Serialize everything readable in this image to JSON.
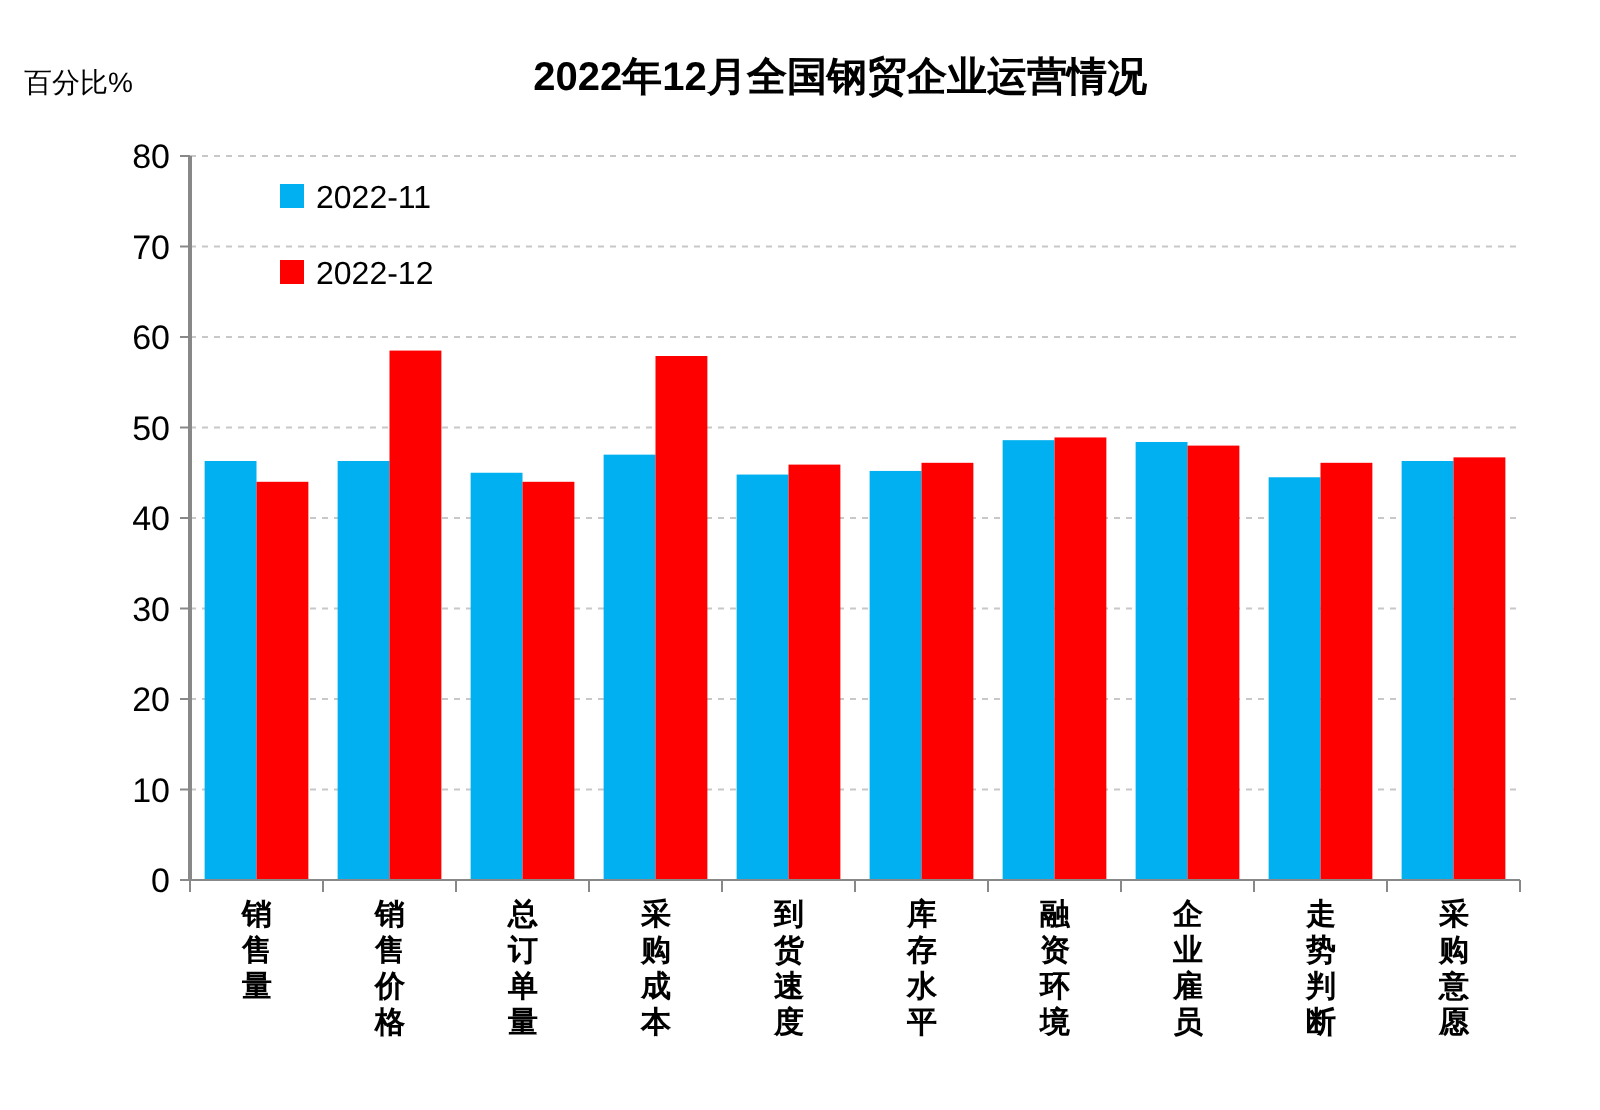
{
  "chart_data": {
    "type": "bar",
    "title": "2022年12月全国钢贸企业运营情况",
    "ylabel": "百分比%",
    "categories": [
      "销售量",
      "销售价格",
      "总订单量",
      "采购成本",
      "到货速度",
      "库存水平",
      "融资环境",
      "企业雇员",
      "走势判断",
      "采购意愿"
    ],
    "series": [
      {
        "name": "2022-11",
        "color": "#00b0f0",
        "values": [
          46.3,
          46.3,
          45.0,
          47.0,
          44.8,
          45.2,
          48.6,
          48.4,
          44.5,
          46.3
        ]
      },
      {
        "name": "2022-12",
        "color": "#ff0000",
        "values": [
          44.0,
          58.5,
          44.0,
          57.9,
          45.9,
          46.1,
          48.9,
          48.0,
          46.1,
          46.7
        ]
      }
    ],
    "ylim": [
      0,
      80
    ],
    "yticks": [
      0,
      10,
      20,
      30,
      40,
      50,
      60,
      70,
      80
    ],
    "grid": "y",
    "legend": "top left"
  }
}
